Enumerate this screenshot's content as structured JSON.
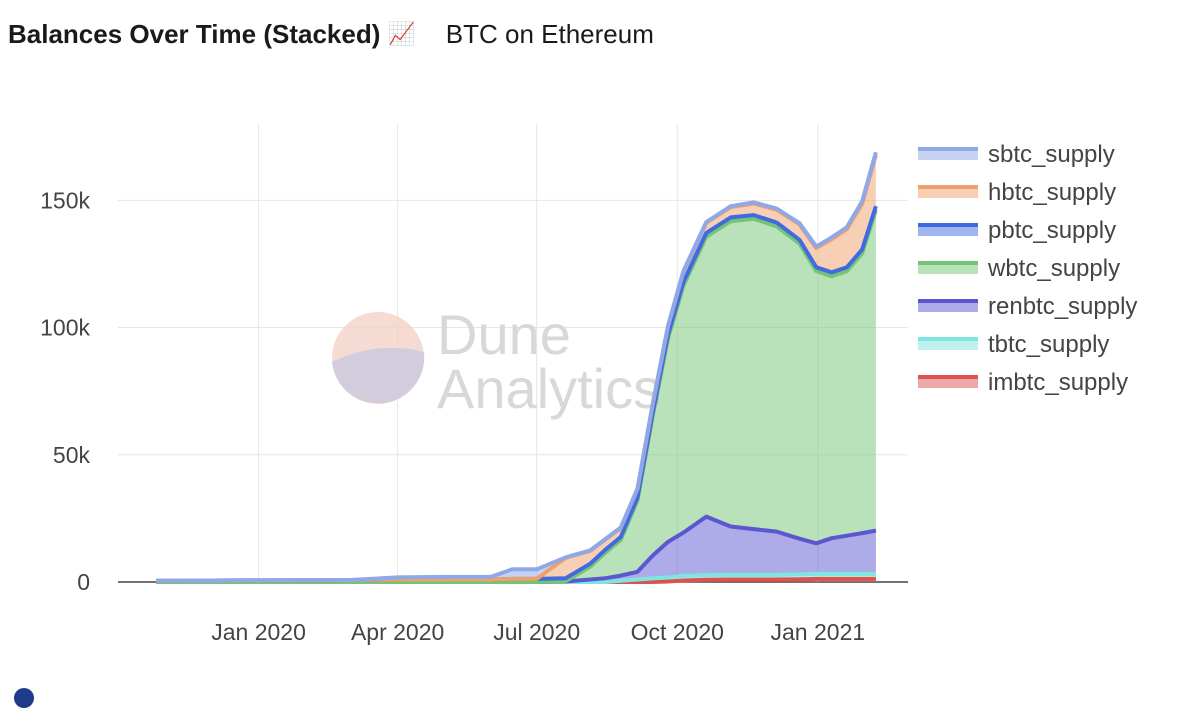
{
  "header": {
    "title": "Balances Over Time (Stacked)",
    "emoji": "📈",
    "subtitle": "BTC on Ethereum"
  },
  "watermark": {
    "line1": "Dune",
    "line2": "Analytics"
  },
  "chart_data": {
    "type": "area",
    "stacked": true,
    "x_ticks": [
      "Jan 2020",
      "Apr 2020",
      "Jul 2020",
      "Oct 2020",
      "Jan 2021"
    ],
    "y_ticks": [
      "0",
      "50k",
      "100k",
      "150k"
    ],
    "ylim": [
      0,
      180000
    ],
    "legend_position": "right",
    "grid": true,
    "x": [
      "2019-10-26",
      "2019-12-01",
      "2020-01-15",
      "2020-03-01",
      "2020-04-01",
      "2020-05-01",
      "2020-06-01",
      "2020-06-15",
      "2020-07-01",
      "2020-07-20",
      "2020-08-05",
      "2020-08-15",
      "2020-08-25",
      "2020-09-05",
      "2020-09-15",
      "2020-09-25",
      "2020-10-05",
      "2020-10-20",
      "2020-11-05",
      "2020-11-20",
      "2020-12-05",
      "2020-12-20",
      "2020-12-31",
      "2021-01-10",
      "2021-01-20",
      "2021-01-30",
      "2021-02-08"
    ],
    "series": [
      {
        "name": "imbtc_supply",
        "color": "#d9534f",
        "values": [
          0,
          0,
          0,
          0,
          0,
          0,
          0,
          0,
          0,
          0,
          0,
          0,
          0,
          0,
          0,
          200,
          600,
          900,
          1000,
          1000,
          1000,
          1100,
          1200,
          1200,
          1200,
          1200,
          1200
        ]
      },
      {
        "name": "tbtc_supply",
        "color": "#7fe5e0",
        "values": [
          0,
          0,
          0,
          0,
          0,
          0,
          0,
          0,
          0,
          0,
          0,
          0,
          500,
          1000,
          1400,
          1600,
          1800,
          1800,
          1800,
          1800,
          1800,
          1900,
          2000,
          2000,
          2000,
          2000,
          2000
        ]
      },
      {
        "name": "renbtc_supply",
        "color": "#5b57d1",
        "values": [
          0,
          0,
          0,
          0,
          0,
          0,
          0,
          0,
          0,
          200,
          1000,
          1500,
          2000,
          3000,
          9000,
          14000,
          17000,
          23000,
          19000,
          18000,
          17000,
          14000,
          12000,
          14000,
          15000,
          16000,
          17000
        ]
      },
      {
        "name": "wbtc_supply",
        "color": "#74c476",
        "values": [
          0,
          0,
          0,
          0,
          0,
          0,
          0,
          0,
          0,
          100,
          5000,
          10000,
          14000,
          28000,
          55000,
          80000,
          97000,
          110000,
          120000,
          122000,
          120000,
          116000,
          107000,
          103000,
          104000,
          110000,
          126000
        ]
      },
      {
        "name": "pbtc_supply",
        "color": "#4169e1",
        "values": [
          500,
          600,
          700,
          800,
          1000,
          1000,
          1000,
          1200,
          1200,
          1200,
          1200,
          1200,
          1200,
          1200,
          1200,
          1500,
          1500,
          1500,
          1500,
          1400,
          1500,
          1500,
          1500,
          1500,
          1500,
          1500,
          1500
        ]
      },
      {
        "name": "hbtc_supply",
        "color": "#f0a06a",
        "values": [
          0,
          0,
          0,
          0,
          0,
          0,
          0,
          0,
          0,
          8000,
          5000,
          4000,
          3500,
          3300,
          3300,
          3300,
          4000,
          4000,
          4000,
          4500,
          5000,
          6000,
          7500,
          13000,
          15000,
          18000,
          20000
        ]
      },
      {
        "name": "sbtc_supply",
        "color": "#8ea8e8",
        "values": [
          0,
          0,
          0,
          0,
          800,
          1000,
          1000,
          3800,
          3800,
          200,
          200,
          200,
          200,
          200,
          200,
          300,
          300,
          300,
          400,
          500,
          500,
          500,
          600,
          700,
          800,
          1000,
          1200
        ]
      }
    ]
  }
}
